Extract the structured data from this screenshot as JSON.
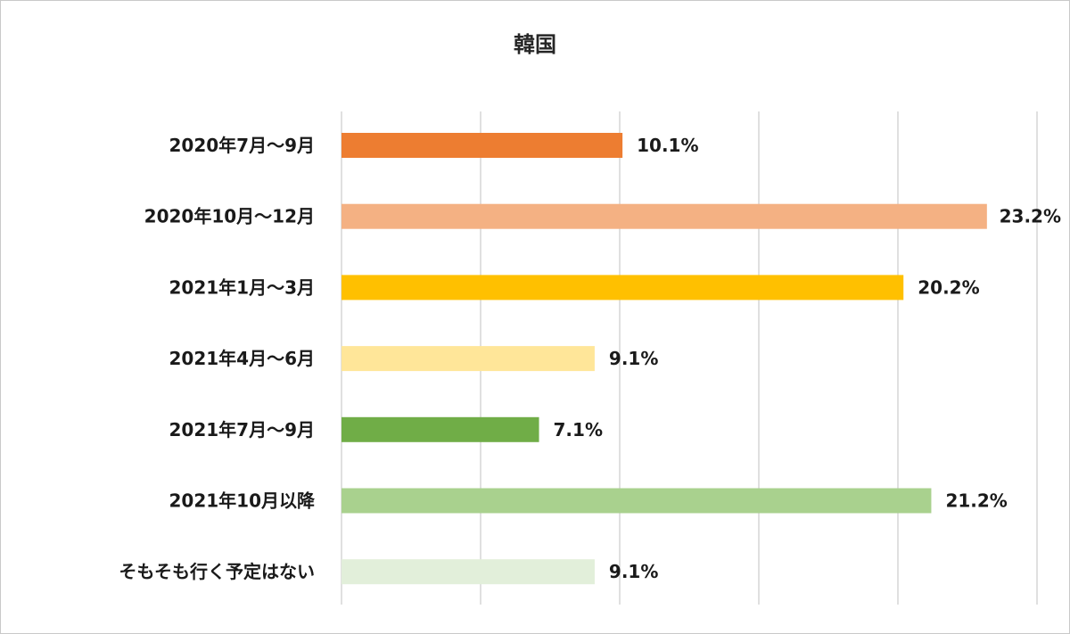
{
  "chart_data": {
    "type": "bar",
    "orientation": "horizontal",
    "title": "韓国",
    "categories": [
      "2020年7月～9月",
      "2020年10月～12月",
      "2021年1月～3月",
      "2021年4月～6月",
      "2021年7月～9月",
      "2021年10月以降",
      "そもそも行く予定はない"
    ],
    "values": [
      10.1,
      23.2,
      20.2,
      9.1,
      7.1,
      21.2,
      9.1
    ],
    "value_labels": [
      "10.1%",
      "23.2%",
      "20.2%",
      "9.1%",
      "7.1%",
      "21.2%",
      "9.1%"
    ],
    "colors": [
      "#ED7D31",
      "#F4B183",
      "#FFC000",
      "#FFE699",
      "#70AD47",
      "#A9D18E",
      "#E2EFDA"
    ],
    "xlim": [
      0,
      25
    ],
    "grid": true,
    "legend": "none",
    "xlabel": "",
    "ylabel": ""
  }
}
